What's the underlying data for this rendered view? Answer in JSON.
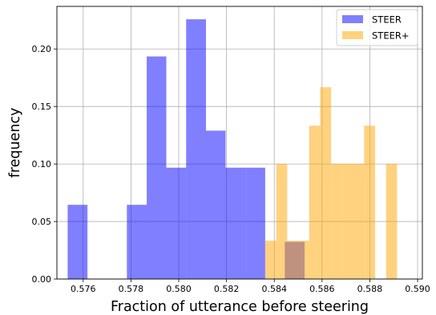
{
  "chart_data": {
    "type": "bar",
    "subtype": "overlapping-histogram",
    "xlabel": "Fraction of utterance before steering",
    "ylabel": "frequency",
    "xlim": [
      0.5749,
      0.5902
    ],
    "ylim": [
      0,
      0.237
    ],
    "xticks": [
      "0.576",
      "0.578",
      "0.580",
      "0.582",
      "0.584",
      "0.586",
      "0.588",
      "0.590"
    ],
    "yticks": [
      "0.00",
      "0.05",
      "0.10",
      "0.15",
      "0.20"
    ],
    "grid": true,
    "legend_position": "top-right",
    "series": [
      {
        "name": "STEER",
        "color": "#0000ff",
        "alpha": 0.5,
        "bins": [
          {
            "x0": 0.57535,
            "x1": 0.57618,
            "value": 0.0645
          },
          {
            "x0": 0.57618,
            "x1": 0.577,
            "value": 0
          },
          {
            "x0": 0.577,
            "x1": 0.57783,
            "value": 0
          },
          {
            "x0": 0.57783,
            "x1": 0.57866,
            "value": 0.0645
          },
          {
            "x0": 0.57866,
            "x1": 0.57948,
            "value": 0.1935
          },
          {
            "x0": 0.57948,
            "x1": 0.58031,
            "value": 0.0968
          },
          {
            "x0": 0.58031,
            "x1": 0.58114,
            "value": 0.2258
          },
          {
            "x0": 0.58114,
            "x1": 0.58196,
            "value": 0.129
          },
          {
            "x0": 0.58196,
            "x1": 0.58279,
            "value": 0.0968
          },
          {
            "x0": 0.58279,
            "x1": 0.58362,
            "value": 0.0968
          },
          {
            "x0": 0.58362,
            "x1": 0.58444,
            "value": 0
          },
          {
            "x0": 0.58444,
            "x1": 0.58527,
            "value": 0.0323
          }
        ]
      },
      {
        "name": "STEER+",
        "color": "#ffa500",
        "alpha": 0.5,
        "bins": [
          {
            "x0": 0.58362,
            "x1": 0.58408,
            "value": 0.0333
          },
          {
            "x0": 0.58408,
            "x1": 0.58454,
            "value": 0.1
          },
          {
            "x0": 0.58454,
            "x1": 0.585,
            "value": 0.0333
          },
          {
            "x0": 0.585,
            "x1": 0.58546,
            "value": 0.0333
          },
          {
            "x0": 0.58546,
            "x1": 0.58592,
            "value": 0.1333
          },
          {
            "x0": 0.58592,
            "x1": 0.58638,
            "value": 0.1667
          },
          {
            "x0": 0.58638,
            "x1": 0.58684,
            "value": 0.1
          },
          {
            "x0": 0.58684,
            "x1": 0.5873,
            "value": 0.1
          },
          {
            "x0": 0.5873,
            "x1": 0.58776,
            "value": 0.1
          },
          {
            "x0": 0.58776,
            "x1": 0.58822,
            "value": 0.1333
          },
          {
            "x0": 0.58822,
            "x1": 0.58868,
            "value": 0
          },
          {
            "x0": 0.58868,
            "x1": 0.58914,
            "value": 0.1
          }
        ]
      }
    ]
  }
}
